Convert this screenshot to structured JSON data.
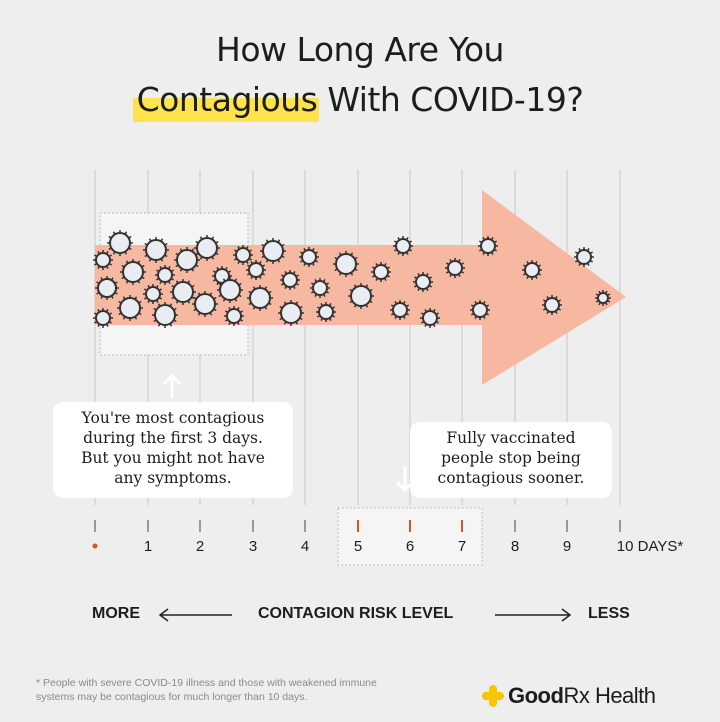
{
  "title": {
    "line1": "How Long Are You",
    "highlight": "Contagious",
    "line2_rest": " With COVID-19?"
  },
  "callouts": {
    "first": [
      "You're most contagious",
      "during the first 3 days.",
      "But you might not have",
      "any symptoms."
    ],
    "second": [
      "Fully vaccinated",
      "people stop being",
      "contagious sooner."
    ]
  },
  "axis": {
    "days": [
      "1",
      "2",
      "3",
      "4",
      "5",
      "6",
      "7",
      "8",
      "9"
    ],
    "last": "10 DAYS*"
  },
  "risk": {
    "more": "MORE",
    "label": "CONTAGION RISK LEVEL",
    "less": "LESS"
  },
  "footnote": [
    "* People with severe COVID-19 illness and those with weakened immune",
    "systems may be contagious for much longer than 10 days."
  ],
  "brand": {
    "name_bold": "Good",
    "name_rest": "Rx Health"
  },
  "colors": {
    "band": "#f6b8a0",
    "highlight": "#ffe34d",
    "accent": "#d9532b",
    "logo": "#f7c600"
  }
}
